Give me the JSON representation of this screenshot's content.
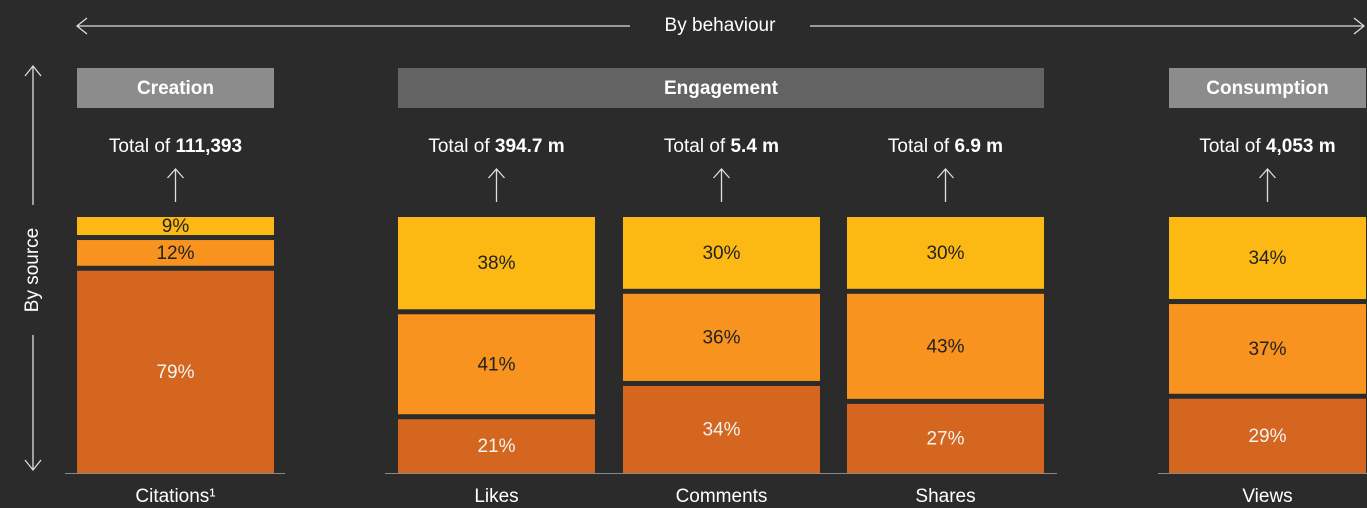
{
  "chart_data": {
    "type": "stacked_bar",
    "x_axis_label": "By behaviour",
    "y_axis_label": "By source",
    "groups": [
      "Creation",
      "Engagement",
      "Consumption"
    ],
    "categories": [
      "Citations¹",
      "Likes",
      "Comments",
      "Shares",
      "Views"
    ],
    "totals": [
      {
        "prefix": "Total of",
        "value": "111,393"
      },
      {
        "prefix": "Total of",
        "value": "394.7 m"
      },
      {
        "prefix": "Total of",
        "value": "5.4 m"
      },
      {
        "prefix": "Total of",
        "value": "6.9 m"
      },
      {
        "prefix": "Total of",
        "value": "4,053 m"
      }
    ],
    "ylim": [
      0,
      100
    ],
    "series": [
      {
        "color": "#d4661f",
        "values": [
          79,
          21,
          34,
          27,
          29
        ],
        "value_labels": [
          "79%",
          "21%",
          "34%",
          "27%",
          "29%"
        ]
      },
      {
        "color": "#f7931e",
        "values": [
          12,
          41,
          36,
          43,
          37
        ],
        "value_labels": [
          "12%",
          "41%",
          "36%",
          "43%",
          "37%"
        ]
      },
      {
        "color": "#fdb913",
        "values": [
          9,
          38,
          30,
          30,
          34
        ],
        "value_labels": [
          "9%",
          "38%",
          "30%",
          "30%",
          "34%"
        ]
      }
    ]
  }
}
